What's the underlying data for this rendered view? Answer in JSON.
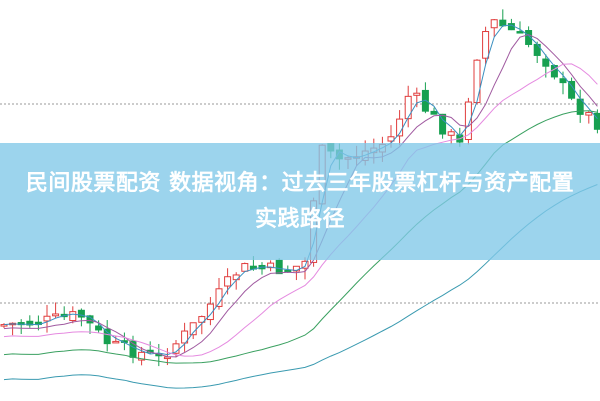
{
  "banner": {
    "title": "民间股票配资 数据视角：过去三年股票杠杆与资产配置实践路径"
  },
  "colors": {
    "up": "#e03c3c",
    "down": "#17a050",
    "ma_short": "#3a8fc0",
    "ma_mid": "#a05aa0",
    "ma_long": "#e58ae0",
    "ma_trend": "#3aa060",
    "ma_slow": "#3a9ab0",
    "banner": "#80c8e8",
    "grid": "#999999"
  }
}
